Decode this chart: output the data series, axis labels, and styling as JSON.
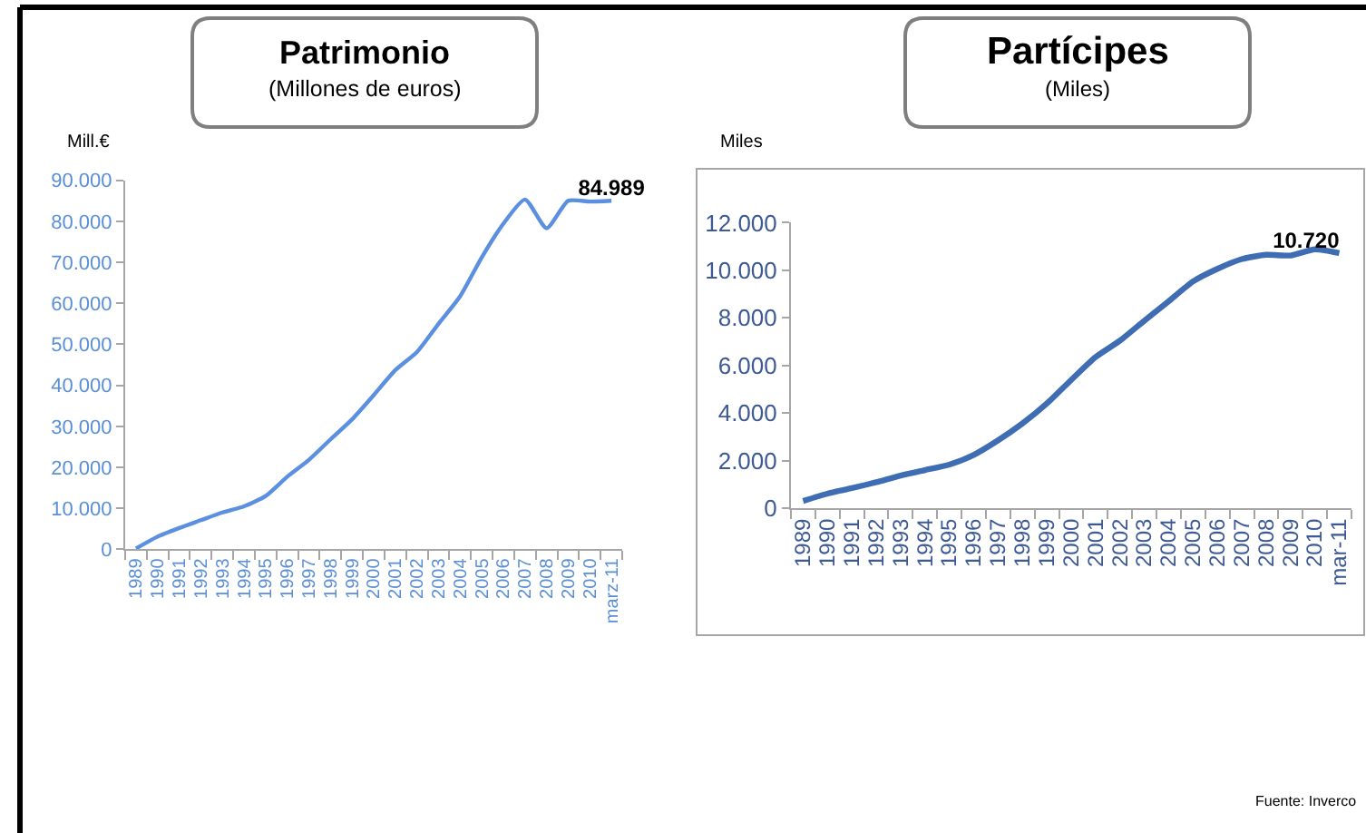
{
  "chart_data": [
    {
      "type": "line",
      "title": "Patrimonio",
      "subtitle": "(Millones de euros)",
      "ylabel": "Mill.€",
      "categories": [
        "1989",
        "1990",
        "1991",
        "1992",
        "1993",
        "1994",
        "1995",
        "1996",
        "1997",
        "1998",
        "1999",
        "2000",
        "2001",
        "2002",
        "2003",
        "2004",
        "2005",
        "2006",
        "2007",
        "2008",
        "2009",
        "2010",
        "marz-11"
      ],
      "series": [
        {
          "color": "#5b8fe0",
          "values": [
            200,
            3100,
            5200,
            7100,
            9000,
            10500,
            13000,
            17700,
            21800,
            26800,
            31700,
            37600,
            43700,
            48100,
            55000,
            61700,
            71200,
            79400,
            85300,
            78300,
            85000,
            84800,
            84989
          ],
          "value_labels": [
            null,
            null,
            null,
            null,
            null,
            null,
            null,
            null,
            null,
            null,
            null,
            null,
            null,
            null,
            null,
            null,
            null,
            null,
            null,
            null,
            null,
            null,
            "84.989"
          ]
        }
      ],
      "ylim": [
        0,
        90000
      ],
      "yticks": [
        0,
        {
          "value": 10000,
          "label": "10.000"
        },
        {
          "value": 20000,
          "label": "20.000"
        },
        {
          "value": 30000,
          "label": "30.000"
        },
        {
          "value": 40000,
          "label": "40.000"
        },
        {
          "value": 50000,
          "label": "50.000"
        },
        {
          "value": 60000,
          "label": "60.000"
        },
        {
          "value": 70000,
          "label": "70.000"
        },
        {
          "value": 80000,
          "label": "80.000"
        },
        {
          "value": 90000,
          "label": "90.000"
        }
      ],
      "grid": false,
      "marker": "none",
      "line_style": "solid"
    },
    {
      "type": "line",
      "title": "Partícipes",
      "subtitle": "(Miles)",
      "ylabel": "Miles",
      "categories": [
        "1989",
        "1990",
        "1991",
        "1992",
        "1993",
        "1994",
        "1995",
        "1996",
        "1997",
        "1998",
        "1999",
        "2000",
        "2001",
        "2002",
        "2003",
        "2004",
        "2005",
        "2006",
        "2007",
        "2008",
        "2009",
        "2010",
        "mar-11"
      ],
      "series": [
        {
          "color": "#3f6db3",
          "values": [
            300,
            610,
            840,
            1090,
            1370,
            1600,
            1830,
            2240,
            2850,
            3560,
            4400,
            5390,
            6350,
            7040,
            7880,
            8700,
            9530,
            10060,
            10470,
            10650,
            10620,
            10880,
            10720
          ],
          "value_labels": [
            null,
            null,
            null,
            null,
            null,
            null,
            null,
            null,
            null,
            null,
            null,
            null,
            null,
            null,
            null,
            null,
            null,
            null,
            null,
            null,
            null,
            null,
            "10.720"
          ]
        }
      ],
      "ylim": [
        0,
        12000
      ],
      "yticks": [
        0,
        {
          "value": 2000,
          "label": "2.000"
        },
        {
          "value": 4000,
          "label": "4.000"
        },
        {
          "value": 6000,
          "label": "6.000"
        },
        {
          "value": 8000,
          "label": "8.000"
        },
        {
          "value": 10000,
          "label": "10.000"
        },
        {
          "value": 12000,
          "label": "12.000"
        }
      ],
      "grid": false,
      "marker": "none",
      "line_style": "solid",
      "annotations": [
        "Fuente: Inverco"
      ]
    }
  ]
}
